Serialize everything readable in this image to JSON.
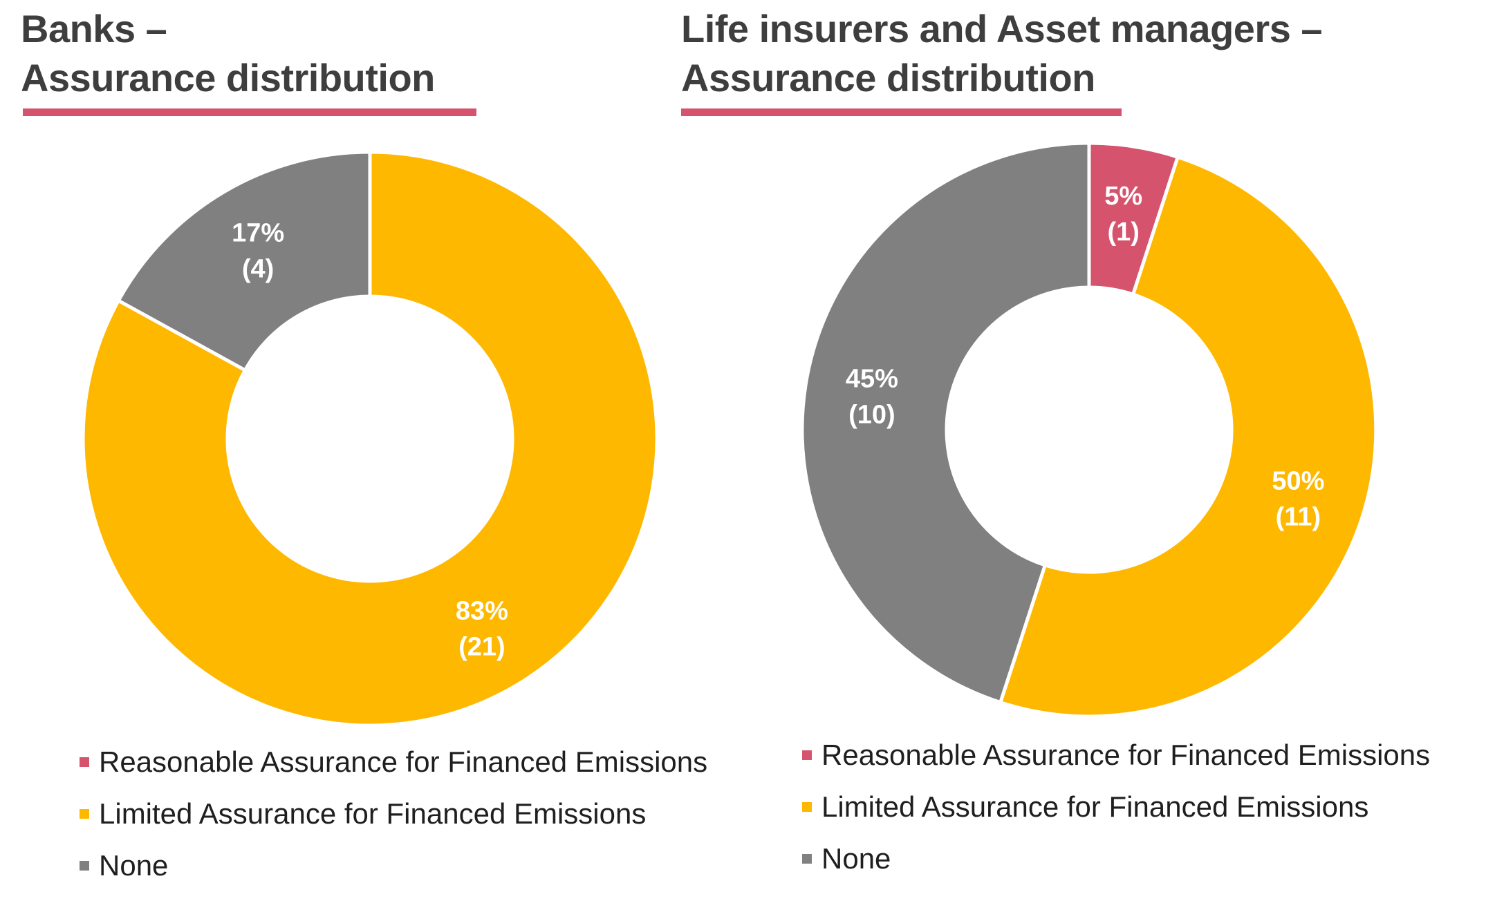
{
  "style": {
    "background": "#FFFFFF",
    "title_color": "#3E3E3E",
    "underline_color": "#D6536D",
    "legend_text_color": "#1F1F1F",
    "slice_label_color": "#FFFFFF",
    "accent_reasonable": "#D6536D",
    "accent_limited": "#FFB800",
    "accent_none": "#808080"
  },
  "chart_data": [
    {
      "id": "banks",
      "type": "pie",
      "variant": "donut",
      "title_lines": [
        "Banks –",
        "Assurance distribution"
      ],
      "start_angle_deg": 0,
      "direction": "clockwise",
      "hole_ratio": 0.5,
      "slices": [
        {
          "name": "Limited Assurance for Financed Emissions",
          "pct": 83,
          "count": 21,
          "pct_label": "83%",
          "count_label": "(21)",
          "color": "#FFB800"
        },
        {
          "name": "None",
          "pct": 17,
          "count": 4,
          "pct_label": "17%",
          "count_label": "(4)",
          "color": "#808080"
        }
      ],
      "legend": [
        {
          "label": "Reasonable Assurance for Financed Emissions",
          "color": "#D6536D"
        },
        {
          "label": "Limited Assurance for Financed Emissions",
          "color": "#FFB800"
        },
        {
          "label": "None",
          "color": "#808080"
        }
      ]
    },
    {
      "id": "life-insurers-and-asset-managers",
      "type": "pie",
      "variant": "donut",
      "title_lines": [
        "Life insurers and Asset managers –",
        "Assurance distribution"
      ],
      "start_angle_deg": 0,
      "direction": "clockwise",
      "hole_ratio": 0.5,
      "slices": [
        {
          "name": "Reasonable Assurance for Financed Emissions",
          "pct": 5,
          "count": 1,
          "pct_label": "5%",
          "count_label": "(1)",
          "color": "#D6536D"
        },
        {
          "name": "Limited Assurance for Financed Emissions",
          "pct": 50,
          "count": 11,
          "pct_label": "50%",
          "count_label": "(11)",
          "color": "#FFB800"
        },
        {
          "name": "None",
          "pct": 45,
          "count": 10,
          "pct_label": "45%",
          "count_label": "(10)",
          "color": "#808080"
        }
      ],
      "legend": [
        {
          "label": "Reasonable Assurance for Financed Emissions",
          "color": "#D6536D"
        },
        {
          "label": "Limited Assurance for Financed Emissions",
          "color": "#FFB800"
        },
        {
          "label": "None",
          "color": "#808080"
        }
      ]
    }
  ]
}
